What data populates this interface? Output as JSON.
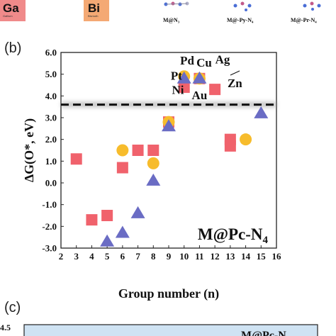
{
  "top_strip": {
    "tiles": [
      {
        "symbol": "Ga",
        "name": "Gallium",
        "color": "#f08a8a"
      },
      {
        "symbol": "Bi",
        "name": "Bismuth",
        "color": "#f4a974"
      }
    ],
    "structures": [
      "M@N₃",
      "M@-Py-N₄",
      "M@-Pr-N₄"
    ]
  },
  "panel_b_label": "(b)",
  "panel_c_label": "(c)",
  "panel_c": {
    "top_tick": "4.5",
    "partial_title": "M@Pc-N"
  },
  "colors": {
    "square": "#f0626c",
    "circle": "#f7bc2c",
    "triangle": "#6a6cc4",
    "reference_line": "#111111"
  },
  "chart_data": {
    "type": "scatter",
    "title": "",
    "annotation": "M@Pc-N₄",
    "xlabel": "Group number (n)",
    "ylabel": "ΔG(O*, eV)",
    "xlim": [
      2,
      16
    ],
    "ylim": [
      -3.0,
      6.0
    ],
    "xticks": [
      "2",
      "3",
      "4",
      "5",
      "6",
      "7",
      "8",
      "9",
      "10",
      "11",
      "12",
      "13",
      "14",
      "15",
      "16"
    ],
    "yticks": [
      "-3.0",
      "-2.0",
      "-1.0",
      "0.0",
      "1.0",
      "2.0",
      "3.0",
      "4.0",
      "5.0",
      "6.0"
    ],
    "reference_line_y": 3.6,
    "series": [
      {
        "marker": "square",
        "points": [
          [
            3,
            1.1
          ],
          [
            4,
            -1.7
          ],
          [
            5,
            -1.5
          ],
          [
            6,
            0.7
          ],
          [
            7,
            1.5
          ],
          [
            8,
            1.5
          ],
          [
            9,
            2.8
          ],
          [
            10,
            4.4
          ],
          [
            11,
            4.8
          ],
          [
            12,
            4.3
          ],
          [
            13,
            1.7
          ],
          [
            13,
            2.0
          ]
        ]
      },
      {
        "marker": "circle",
        "points": [
          [
            6,
            1.5
          ],
          [
            8,
            0.9
          ],
          [
            9,
            2.8
          ],
          [
            10,
            4.9
          ],
          [
            11,
            4.8
          ],
          [
            14,
            2.0
          ]
        ]
      },
      {
        "marker": "triangle",
        "points": [
          [
            5,
            -2.7
          ],
          [
            6,
            -2.3
          ],
          [
            7,
            -1.4
          ],
          [
            8,
            0.1
          ],
          [
            9,
            2.6
          ],
          [
            10,
            4.8
          ],
          [
            11,
            4.8
          ],
          [
            15,
            3.2
          ]
        ]
      }
    ],
    "element_labels": [
      {
        "text": "Pd",
        "x": 10.2,
        "y": 5.45
      },
      {
        "text": "Cu",
        "x": 11.3,
        "y": 5.35
      },
      {
        "text": "Ag",
        "x": 12.5,
        "y": 5.5
      },
      {
        "text": "Pt",
        "x": 9.5,
        "y": 4.75
      },
      {
        "text": "Ni",
        "x": 9.6,
        "y": 4.1
      },
      {
        "text": "Au",
        "x": 11.0,
        "y": 3.85
      },
      {
        "text": "Zn",
        "x": 13.3,
        "y": 4.4
      }
    ]
  }
}
